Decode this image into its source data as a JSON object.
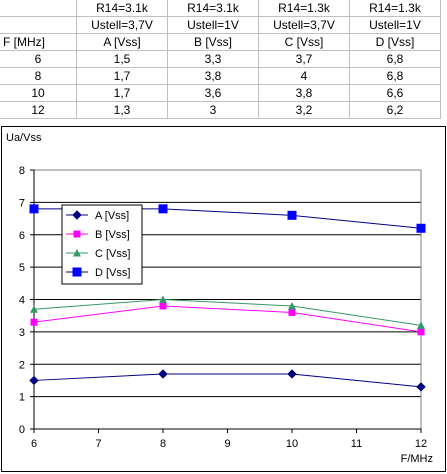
{
  "table": {
    "header_row1": [
      "",
      "R14=3.1k",
      "R14=3.1k",
      "R14=1.3k",
      "R14=1.3k"
    ],
    "header_row2": [
      "",
      "Ustell=3,7V",
      "Ustell=1V",
      "Ustell=3,7V",
      "Ustell=1V"
    ],
    "header_row3": [
      "F [MHz]",
      "A [Vss]",
      "B [Vss]",
      "C [Vss]",
      "D [Vss]"
    ],
    "rows": [
      [
        "6",
        "1,5",
        "3,3",
        "3,7",
        "6,8"
      ],
      [
        "8",
        "1,7",
        "3,8",
        "4",
        "6,8"
      ],
      [
        "10",
        "1,7",
        "3,6",
        "3,8",
        "6,6"
      ],
      [
        "12",
        "1,3",
        "3",
        "3,2",
        "6,2"
      ]
    ]
  },
  "chart_data": {
    "type": "line",
    "ylabel": "Ua/Vss",
    "xlabel": "F/MHz",
    "x": [
      6,
      8,
      10,
      12
    ],
    "xlim": [
      6,
      12
    ],
    "ylim": [
      0,
      8
    ],
    "xticks": [
      6,
      7,
      8,
      9,
      10,
      11,
      12
    ],
    "yticks": [
      0,
      1,
      2,
      3,
      4,
      5,
      6,
      7,
      8
    ],
    "grid": "horizontal",
    "legend_position": "left",
    "series": [
      {
        "name": "A [Vss]",
        "values": [
          1.5,
          1.7,
          1.7,
          1.3
        ],
        "color": "#000080",
        "line_color": "#000080",
        "marker": "diamond"
      },
      {
        "name": "B [Vss]",
        "values": [
          3.3,
          3.8,
          3.6,
          3.0
        ],
        "color": "#ff00ff",
        "line_color": "#ff00ff",
        "marker": "square"
      },
      {
        "name": "C [Vss]",
        "values": [
          3.7,
          4.0,
          3.8,
          3.2
        ],
        "color": "#339966",
        "line_color": "#339966",
        "marker": "triangle"
      },
      {
        "name": "D [Vss]",
        "values": [
          6.8,
          6.8,
          6.6,
          6.2
        ],
        "color": "#0000ff",
        "line_color": "#000080",
        "marker": "square-large"
      }
    ]
  }
}
